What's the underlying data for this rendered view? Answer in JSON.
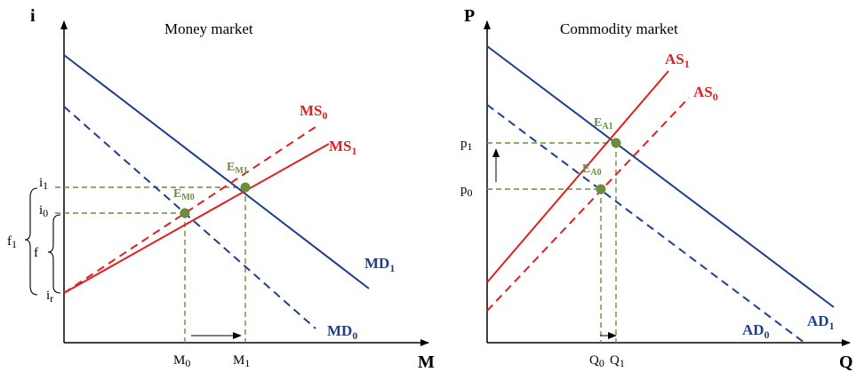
{
  "colors": {
    "navy": "#1f3e8a",
    "red": "#e02020",
    "green_dash": "#6a8e3c",
    "green_point": "#6a8e3c",
    "axis": "#000000"
  },
  "money_market": {
    "title": "Money market",
    "y_axis_label": "i",
    "x_axis_label": "M",
    "y_ticks": {
      "i1": {
        "base": "i",
        "sub": "1"
      },
      "i0": {
        "base": "i",
        "sub": "0"
      },
      "ir": {
        "base": "i",
        "sub": "r"
      }
    },
    "brace_labels": {
      "f1": {
        "base": "f",
        "sub": "1"
      },
      "f": {
        "base": "f",
        "sub": ""
      }
    },
    "x_ticks": {
      "M0": {
        "base": "M",
        "sub": "0"
      },
      "M1": {
        "base": "M",
        "sub": "1"
      }
    },
    "curves": {
      "MS0": {
        "base": "MS",
        "sub": "0"
      },
      "MS1": {
        "base": "MS",
        "sub": "1"
      },
      "MD1": {
        "base": "MD",
        "sub": "1"
      },
      "MD0": {
        "base": "MD",
        "sub": "0"
      }
    },
    "equilibria": {
      "EM1": {
        "base": "E",
        "sub": "M1"
      },
      "EM0": {
        "base": "E",
        "sub": "M0"
      }
    }
  },
  "commodity_market": {
    "title": "Commodity market",
    "y_axis_label": "P",
    "x_axis_label": "Q",
    "y_ticks": {
      "p1": {
        "base": "p",
        "sub": "1"
      },
      "p0": {
        "base": "p",
        "sub": "0"
      }
    },
    "x_ticks": {
      "Q0": {
        "base": "Q",
        "sub": "0"
      },
      "Q1": {
        "base": "Q",
        "sub": "1"
      }
    },
    "curves": {
      "AS1": {
        "base": "AS",
        "sub": "1"
      },
      "AS0": {
        "base": "AS",
        "sub": "0"
      },
      "AD0": {
        "base": "AD",
        "sub": "0"
      },
      "AD1": {
        "base": "AD",
        "sub": "1"
      }
    },
    "equilibria": {
      "EA1": {
        "base": "E",
        "sub": "A1"
      },
      "EA0": {
        "base": "E",
        "sub": "A0"
      }
    }
  }
}
